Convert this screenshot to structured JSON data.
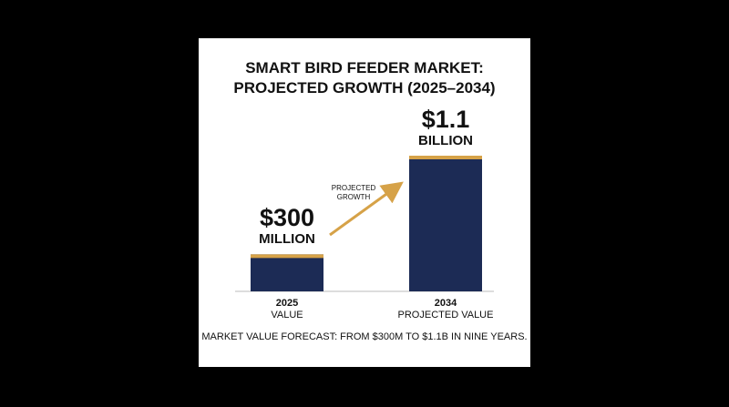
{
  "chart_data": {
    "type": "bar",
    "title": "SMART BIRD FEEDER MARKET: PROJECTED GROWTH (2025–2034)",
    "categories": [
      "2025",
      "2034"
    ],
    "category_subtitles": [
      "VALUE",
      "PROJECTED VALUE"
    ],
    "values": [
      300,
      1100
    ],
    "value_labels": [
      "$300 MILLION",
      "$1.1 BILLION"
    ],
    "color": "#1c2b55",
    "cap_color": "#d6a248",
    "annotation": "PROJECTED GROWTH",
    "footnote": "MARKET VALUE FORECAST: FROM $300M TO $1.1B IN NINE YEARS."
  }
}
